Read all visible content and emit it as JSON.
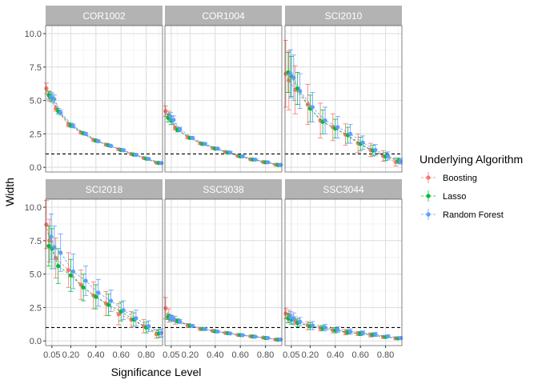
{
  "chart_data": {
    "type": "scatter",
    "xlabel": "Significance Level",
    "ylabel": "Width",
    "xlim": [
      0.0,
      0.93
    ],
    "ylim": [
      -0.35,
      10.6
    ],
    "x_ticks": [
      0.05,
      0.2,
      0.4,
      0.6,
      0.8
    ],
    "x_tick_labels": [
      "0.05",
      "0.20",
      "0.40",
      "0.60",
      "0.80"
    ],
    "y_ticks": [
      0.0,
      2.5,
      5.0,
      7.5,
      10.0
    ],
    "y_tick_labels": [
      "0.0",
      "2.5",
      "5.0",
      "7.5",
      "10.0"
    ],
    "reference_line": 1.0,
    "grid": true,
    "legend_position": "right",
    "legend_title": "Underlying Algorithm",
    "series_names": [
      "Boosting",
      "Lasso",
      "Random Forest"
    ],
    "series_colors": [
      "#F8766D",
      "#00BA38",
      "#619CFF"
    ],
    "x": [
      0.025,
      0.05,
      0.1,
      0.2,
      0.3,
      0.4,
      0.5,
      0.6,
      0.7,
      0.8,
      0.9
    ],
    "panels": [
      {
        "title": "COR1002",
        "series": [
          {
            "name": "Boosting",
            "values": [
              5.9,
              5.3,
              4.4,
              3.2,
              2.6,
              2.05,
              1.7,
              1.35,
              1.0,
              0.7,
              0.35
            ],
            "err": [
              0.4,
              0.35,
              0.2,
              0.15,
              0.1,
              0.1,
              0.1,
              0.08,
              0.06,
              0.05,
              0.04
            ]
          },
          {
            "name": "Lasso",
            "values": [
              5.4,
              5.2,
              4.2,
              3.15,
              2.55,
              2.0,
              1.65,
              1.3,
              0.95,
              0.65,
              0.33
            ],
            "err": [
              0.3,
              0.3,
              0.2,
              0.15,
              0.1,
              0.1,
              0.08,
              0.08,
              0.06,
              0.05,
              0.04
            ]
          },
          {
            "name": "Random Forest",
            "values": [
              5.3,
              5.1,
              4.1,
              3.1,
              2.5,
              1.95,
              1.6,
              1.28,
              0.93,
              0.63,
              0.32
            ],
            "err": [
              0.3,
              0.3,
              0.2,
              0.15,
              0.1,
              0.1,
              0.08,
              0.08,
              0.06,
              0.05,
              0.04
            ]
          }
        ]
      },
      {
        "title": "COR1004",
        "series": [
          {
            "name": "Boosting",
            "values": [
              4.2,
              3.9,
              2.95,
              2.25,
              1.8,
              1.45,
              1.15,
              0.85,
              0.6,
              0.4,
              0.2
            ],
            "err": [
              0.4,
              0.3,
              0.15,
              0.1,
              0.1,
              0.08,
              0.08,
              0.06,
              0.05,
              0.04,
              0.03
            ]
          },
          {
            "name": "Lasso",
            "values": [
              3.7,
              3.5,
              2.8,
              2.2,
              1.75,
              1.4,
              1.1,
              0.82,
              0.58,
              0.38,
              0.18
            ],
            "err": [
              0.3,
              0.3,
              0.15,
              0.1,
              0.1,
              0.08,
              0.08,
              0.06,
              0.05,
              0.04,
              0.03
            ]
          },
          {
            "name": "Random Forest",
            "values": [
              3.8,
              3.55,
              2.85,
              2.2,
              1.75,
              1.4,
              1.1,
              0.82,
              0.58,
              0.38,
              0.18
            ],
            "err": [
              0.3,
              0.3,
              0.15,
              0.1,
              0.1,
              0.08,
              0.08,
              0.06,
              0.05,
              0.04,
              0.03
            ]
          }
        ]
      },
      {
        "title": "SCI2010",
        "series": [
          {
            "name": "Boosting",
            "values": [
              7.0,
              6.5,
              5.8,
              4.7,
              3.5,
              3.0,
              2.45,
              1.8,
              1.3,
              0.85,
              0.4
            ],
            "err": [
              2.5,
              2.2,
              1.8,
              1.5,
              1.3,
              1.0,
              0.8,
              0.7,
              0.5,
              0.4,
              0.3
            ]
          },
          {
            "name": "Lasso",
            "values": [
              7.1,
              6.8,
              5.9,
              4.4,
              3.4,
              2.9,
              2.4,
              1.75,
              1.25,
              0.8,
              0.5
            ],
            "err": [
              1.5,
              1.5,
              1.2,
              1.0,
              0.9,
              0.7,
              0.6,
              0.5,
              0.4,
              0.3,
              0.2
            ]
          },
          {
            "name": "Random Forest",
            "values": [
              7.0,
              6.7,
              5.7,
              4.5,
              3.5,
              3.0,
              2.5,
              1.85,
              1.3,
              0.85,
              0.45
            ],
            "err": [
              1.8,
              1.7,
              1.3,
              1.1,
              1.0,
              0.8,
              0.7,
              0.5,
              0.4,
              0.3,
              0.2
            ]
          }
        ]
      },
      {
        "title": "SCI2018",
        "series": [
          {
            "name": "Boosting",
            "values": [
              8.7,
              7.5,
              6.2,
              5.3,
              4.2,
              3.4,
              2.8,
              2.0,
              1.6,
              1.1,
              0.5
            ],
            "err": [
              1.8,
              1.6,
              1.5,
              1.3,
              1.1,
              1.0,
              0.9,
              0.8,
              0.6,
              0.5,
              0.3
            ]
          },
          {
            "name": "Lasso",
            "values": [
              7.1,
              6.9,
              5.6,
              4.9,
              4.0,
              3.3,
              2.7,
              2.2,
              1.6,
              1.0,
              0.55
            ],
            "err": [
              1.5,
              1.5,
              1.3,
              1.2,
              1.0,
              0.9,
              0.8,
              0.7,
              0.5,
              0.4,
              0.3
            ]
          },
          {
            "name": "Random Forest",
            "values": [
              7.8,
              7.0,
              6.6,
              5.2,
              4.5,
              3.6,
              3.0,
              2.3,
              1.7,
              1.1,
              0.6
            ],
            "err": [
              1.7,
              1.6,
              1.4,
              1.3,
              1.1,
              1.0,
              0.8,
              0.7,
              0.6,
              0.4,
              0.3
            ]
          }
        ]
      },
      {
        "title": "SSC3038",
        "series": [
          {
            "name": "Boosting",
            "values": [
              2.45,
              1.9,
              1.55,
              1.15,
              0.9,
              0.75,
              0.6,
              0.45,
              0.35,
              0.25,
              0.1
            ],
            "err": [
              0.8,
              0.5,
              0.3,
              0.15,
              0.1,
              0.08,
              0.06,
              0.05,
              0.04,
              0.03,
              0.02
            ]
          },
          {
            "name": "Lasso",
            "values": [
              1.8,
              1.7,
              1.5,
              1.15,
              0.9,
              0.72,
              0.58,
              0.44,
              0.33,
              0.22,
              0.1
            ],
            "err": [
              0.2,
              0.2,
              0.15,
              0.1,
              0.08,
              0.06,
              0.05,
              0.04,
              0.03,
              0.03,
              0.02
            ]
          },
          {
            "name": "Random Forest",
            "values": [
              1.75,
              1.65,
              1.45,
              1.12,
              0.88,
              0.7,
              0.56,
              0.43,
              0.32,
              0.22,
              0.1
            ],
            "err": [
              0.2,
              0.2,
              0.15,
              0.1,
              0.08,
              0.06,
              0.05,
              0.04,
              0.03,
              0.03,
              0.02
            ]
          }
        ]
      },
      {
        "title": "SSC3044",
        "series": [
          {
            "name": "Boosting",
            "values": [
              2.05,
              1.9,
              1.5,
              1.15,
              0.95,
              0.8,
              0.65,
              0.55,
              0.45,
              0.3,
              0.2
            ],
            "err": [
              0.4,
              0.4,
              0.3,
              0.3,
              0.2,
              0.2,
              0.2,
              0.15,
              0.15,
              0.1,
              0.1
            ]
          },
          {
            "name": "Lasso",
            "values": [
              1.7,
              1.6,
              1.35,
              1.1,
              0.95,
              0.8,
              0.65,
              0.55,
              0.45,
              0.3,
              0.2
            ],
            "err": [
              0.35,
              0.35,
              0.3,
              0.25,
              0.2,
              0.2,
              0.15,
              0.15,
              0.12,
              0.1,
              0.08
            ]
          },
          {
            "name": "Random Forest",
            "values": [
              1.8,
              1.7,
              1.45,
              1.15,
              1.0,
              0.85,
              0.7,
              0.6,
              0.48,
              0.35,
              0.22
            ],
            "err": [
              0.4,
              0.4,
              0.3,
              0.3,
              0.25,
              0.2,
              0.2,
              0.15,
              0.15,
              0.1,
              0.08
            ]
          }
        ]
      }
    ]
  }
}
